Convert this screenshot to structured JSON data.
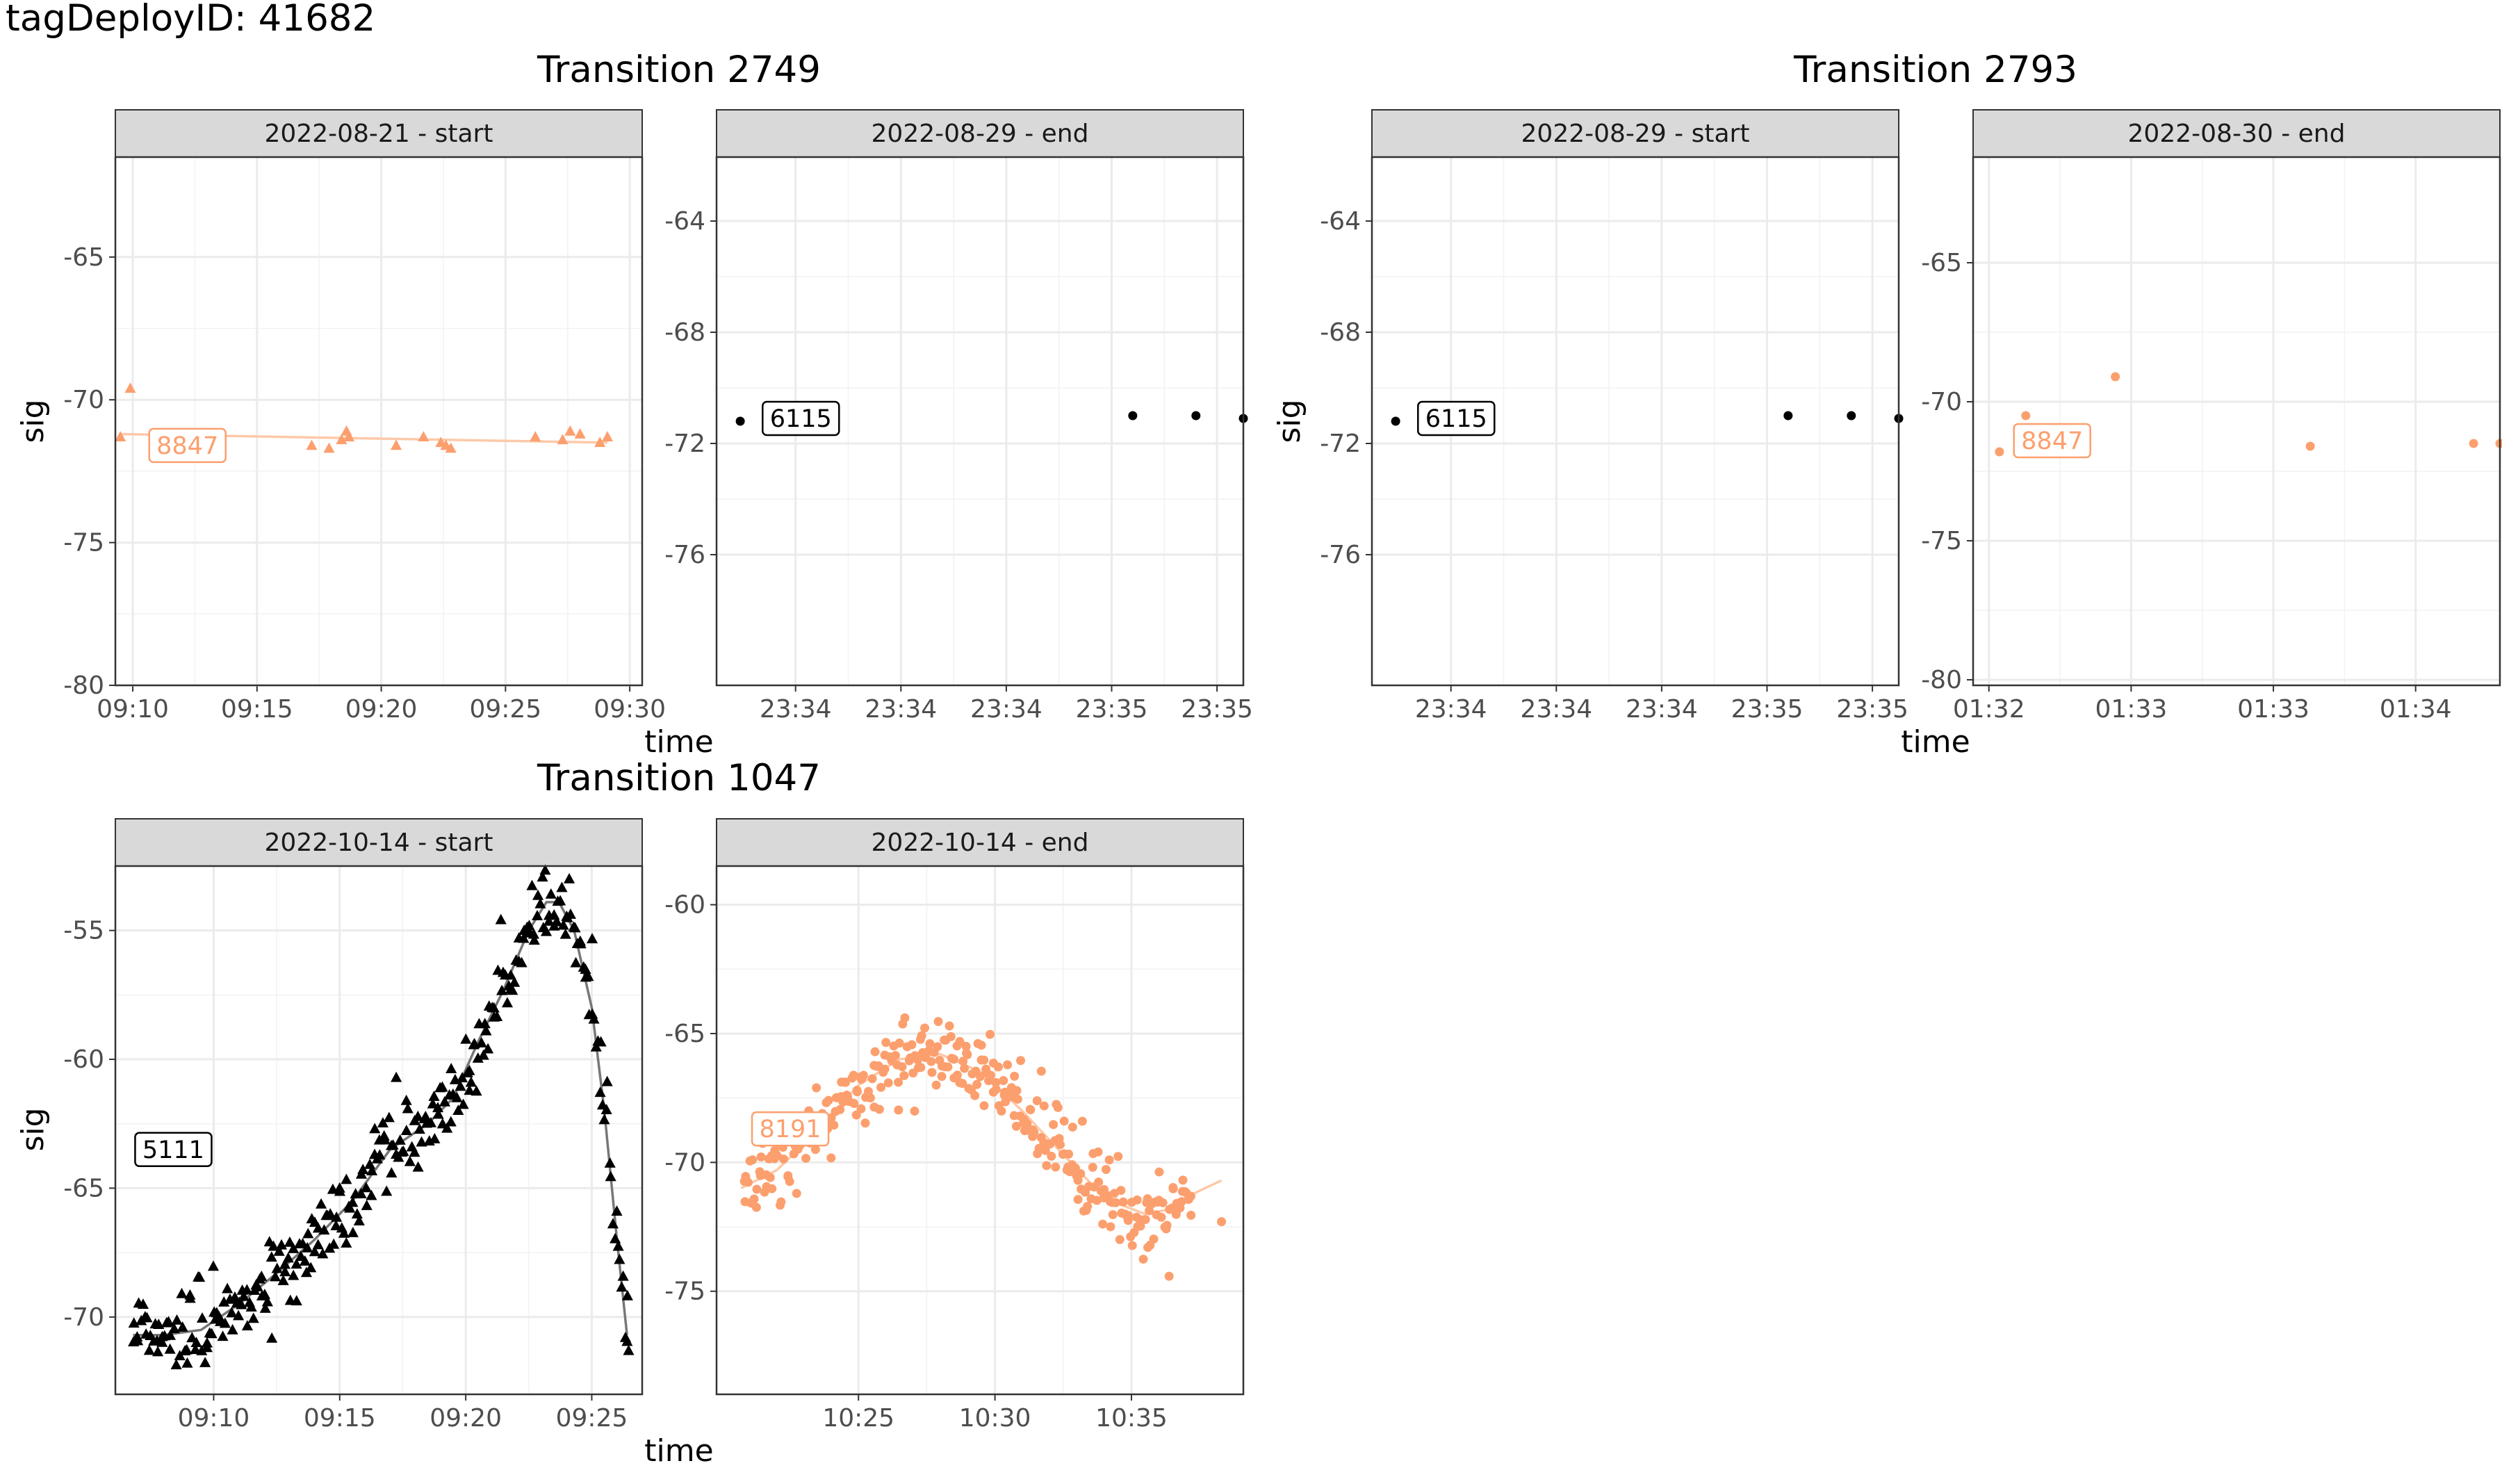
{
  "figure": {
    "title": "tagDeployID: 41682"
  },
  "colors": {
    "orange": "#fc9f6e",
    "orange_line": "#fdc9a9",
    "black": "#000000",
    "smooth_black": "#777777"
  },
  "chart_data": [
    {
      "type": "scatter",
      "group": "Transition 2749",
      "strip": "2022-08-21 - start",
      "xlabel": "time",
      "ylabel": "sig",
      "marker": "triangle",
      "color": "#fc9f6e",
      "xlim": [
        9.3,
        30.5
      ],
      "ylim": [
        -80,
        -61.5
      ],
      "xticks": [
        {
          "v": 10,
          "t": "09:10"
        },
        {
          "v": 15,
          "t": "09:15"
        },
        {
          "v": 20,
          "t": "09:20"
        },
        {
          "v": 25,
          "t": "09:25"
        },
        {
          "v": 30,
          "t": "09:30"
        }
      ],
      "yticks": [
        {
          "v": -65,
          "t": "-65"
        },
        {
          "v": -70,
          "t": "-70"
        },
        {
          "v": -75,
          "t": "-75"
        },
        {
          "v": -80,
          "t": "-80"
        }
      ],
      "points": [
        [
          9.5,
          -71.3
        ],
        [
          9.9,
          -69.6
        ],
        [
          17.2,
          -71.6
        ],
        [
          17.9,
          -71.7
        ],
        [
          18.4,
          -71.4
        ],
        [
          18.6,
          -71.1
        ],
        [
          18.7,
          -71.3
        ],
        [
          20.6,
          -71.6
        ],
        [
          21.7,
          -71.3
        ],
        [
          22.4,
          -71.5
        ],
        [
          22.6,
          -71.6
        ],
        [
          22.8,
          -71.7
        ],
        [
          26.2,
          -71.3
        ],
        [
          27.3,
          -71.4
        ],
        [
          27.6,
          -71.1
        ],
        [
          28.0,
          -71.2
        ],
        [
          28.8,
          -71.5
        ],
        [
          29.1,
          -71.3
        ]
      ],
      "smooth": [
        [
          9.5,
          -71.2
        ],
        [
          29.1,
          -71.5
        ]
      ],
      "label": {
        "text": "8847",
        "x": 12.2,
        "y": -71.6
      }
    },
    {
      "type": "scatter",
      "group": "Transition 2749",
      "strip": "2022-08-29 - end",
      "marker": "circle",
      "color": "#000000",
      "xlim": [
        0,
        1
      ],
      "ylim": [
        -80.7,
        -61.7
      ],
      "xticks": [
        {
          "v": 0.15,
          "t": "23:34"
        },
        {
          "v": 0.35,
          "t": "23:34"
        },
        {
          "v": 0.55,
          "t": "23:34"
        },
        {
          "v": 0.75,
          "t": "23:35"
        },
        {
          "v": 0.95,
          "t": "23:35"
        }
      ],
      "yticks": [
        {
          "v": -64,
          "t": "-64"
        },
        {
          "v": -68,
          "t": "-68"
        },
        {
          "v": -72,
          "t": "-72"
        },
        {
          "v": -76,
          "t": "-76"
        }
      ],
      "points": [
        [
          0.045,
          -71.2
        ],
        [
          0.79,
          -71.0
        ],
        [
          0.91,
          -71.0
        ],
        [
          1.0,
          -71.1
        ]
      ],
      "label": {
        "text": "6115",
        "x": 0.16,
        "y": -71.1
      }
    },
    {
      "type": "scatter",
      "group": "Transition 2793",
      "strip": "2022-08-29 - start",
      "xlabel": "",
      "ylabel": "sig",
      "marker": "circle",
      "color": "#000000",
      "xlim": [
        0,
        1
      ],
      "ylim": [
        -80.7,
        -61.7
      ],
      "xticks": [
        {
          "v": 0.15,
          "t": "23:34"
        },
        {
          "v": 0.35,
          "t": "23:34"
        },
        {
          "v": 0.55,
          "t": "23:34"
        },
        {
          "v": 0.75,
          "t": "23:35"
        },
        {
          "v": 0.95,
          "t": "23:35"
        }
      ],
      "yticks": [
        {
          "v": -64,
          "t": "-64"
        },
        {
          "v": -68,
          "t": "-68"
        },
        {
          "v": -72,
          "t": "-72"
        },
        {
          "v": -76,
          "t": "-76"
        }
      ],
      "points": [
        [
          0.045,
          -71.2
        ],
        [
          0.79,
          -71.0
        ],
        [
          0.91,
          -71.0
        ],
        [
          1.0,
          -71.1
        ]
      ],
      "label": {
        "text": "6115",
        "x": 0.16,
        "y": -71.1
      }
    },
    {
      "type": "scatter",
      "group": "Transition 2793",
      "strip": "2022-08-30 - end",
      "xlabel": "time",
      "marker": "circle",
      "color": "#fc9f6e",
      "xlim": [
        0,
        1
      ],
      "ylim": [
        -80.2,
        -61.2
      ],
      "xticks": [
        {
          "v": 0.03,
          "t": "01:32"
        },
        {
          "v": 0.3,
          "t": "01:33"
        },
        {
          "v": 0.57,
          "t": "01:33"
        },
        {
          "v": 0.84,
          "t": "01:34"
        }
      ],
      "yticks": [
        {
          "v": -65,
          "t": "-65"
        },
        {
          "v": -70,
          "t": "-70"
        },
        {
          "v": -75,
          "t": "-75"
        },
        {
          "v": -80,
          "t": "-80"
        }
      ],
      "points": [
        [
          0.05,
          -71.8
        ],
        [
          0.1,
          -70.5
        ],
        [
          0.27,
          -69.1
        ],
        [
          0.64,
          -71.6
        ],
        [
          0.95,
          -71.5
        ],
        [
          1.0,
          -71.5
        ]
      ],
      "label": {
        "text": "8847",
        "x": 0.15,
        "y": -71.4
      }
    },
    {
      "type": "scatter",
      "group": "Transition 1047",
      "strip": "2022-10-14 - start",
      "xlabel": "time",
      "ylabel": "sig",
      "marker": "triangle",
      "color": "#000000",
      "xlim": [
        6.1,
        27.0
      ],
      "ylim": [
        -73,
        -52.5
      ],
      "xticks": [
        {
          "v": 10,
          "t": "09:10"
        },
        {
          "v": 15,
          "t": "09:15"
        },
        {
          "v": 20,
          "t": "09:20"
        },
        {
          "v": 25,
          "t": "09:25"
        }
      ],
      "yticks": [
        {
          "v": -55,
          "t": "-55"
        },
        {
          "v": -60,
          "t": "-60"
        },
        {
          "v": -65,
          "t": "-65"
        },
        {
          "v": -70,
          "t": "-70"
        }
      ],
      "smooth": [
        [
          6.8,
          -70.7
        ],
        [
          8.0,
          -70.7
        ],
        [
          9.5,
          -70.5
        ],
        [
          11.0,
          -69.5
        ],
        [
          12.5,
          -68.3
        ],
        [
          14.0,
          -67.0
        ],
        [
          15.5,
          -65.5
        ],
        [
          17.0,
          -63.5
        ],
        [
          18.5,
          -62.5
        ],
        [
          19.5,
          -61.5
        ],
        [
          20.5,
          -59.3
        ],
        [
          21.5,
          -57.3
        ],
        [
          22.5,
          -55.0
        ],
        [
          23.2,
          -53.9
        ],
        [
          23.7,
          -53.9
        ],
        [
          24.3,
          -55.0
        ],
        [
          25.0,
          -58.0
        ],
        [
          25.5,
          -62.0
        ],
        [
          26.0,
          -67.0
        ],
        [
          26.4,
          -70.7
        ]
      ],
      "scatter_rule": {
        "x_from": 6.8,
        "x_to": 26.5,
        "n": 300,
        "spread": 0.75
      },
      "label": {
        "text": "5111",
        "x": 8.4,
        "y": -63.5
      }
    },
    {
      "type": "scatter",
      "group": "Transition 1047",
      "strip": "2022-10-14 - end",
      "marker": "circle",
      "color": "#fc9f6e",
      "xlim": [
        19.8,
        39.1
      ],
      "ylim": [
        -79,
        -58.5
      ],
      "xticks": [
        {
          "v": 25,
          "t": "10:25"
        },
        {
          "v": 30,
          "t": "10:30"
        },
        {
          "v": 35,
          "t": "10:35"
        }
      ],
      "yticks": [
        {
          "v": -60,
          "t": "-60"
        },
        {
          "v": -65,
          "t": "-65"
        },
        {
          "v": -70,
          "t": "-70"
        },
        {
          "v": -75,
          "t": "-75"
        }
      ],
      "smooth": [
        [
          20.7,
          -71.0
        ],
        [
          22.0,
          -70.3
        ],
        [
          23.5,
          -68.8
        ],
        [
          25.0,
          -67.0
        ],
        [
          26.5,
          -66.0
        ],
        [
          28.0,
          -65.8
        ],
        [
          29.5,
          -66.5
        ],
        [
          31.0,
          -68.0
        ],
        [
          32.5,
          -69.7
        ],
        [
          33.5,
          -70.8
        ],
        [
          34.5,
          -71.6
        ],
        [
          35.5,
          -72.0
        ],
        [
          36.5,
          -71.8
        ],
        [
          37.3,
          -71.2
        ],
        [
          38.3,
          -70.7
        ]
      ],
      "scatter_rule": {
        "x_from": 20.8,
        "x_to": 37.2,
        "n": 330,
        "spread": 0.7
      },
      "extra_points": [
        [
          35.6,
          -73.3
        ],
        [
          38.3,
          -72.3
        ]
      ],
      "label": {
        "text": "8191",
        "x": 22.5,
        "y": -68.7
      }
    }
  ]
}
